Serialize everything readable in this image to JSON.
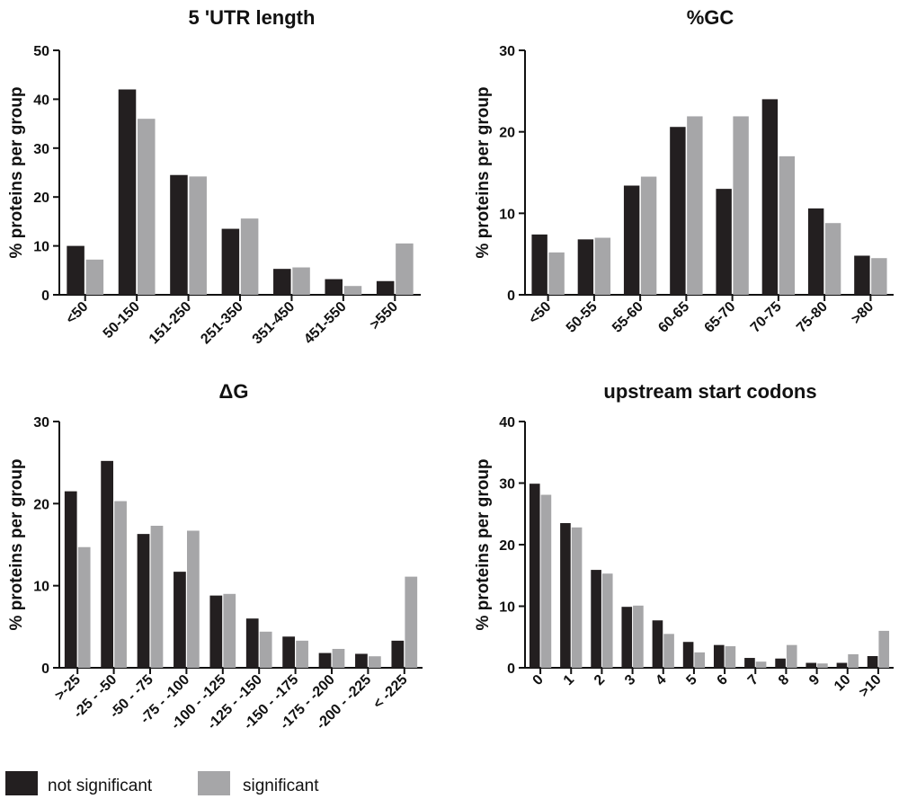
{
  "legend": {
    "items": [
      {
        "label": "not significant",
        "color": "#231f20"
      },
      {
        "label": "significant",
        "color": "#a6a6a8"
      }
    ]
  },
  "chart_data": [
    {
      "type": "bar",
      "title": "5 'UTR length",
      "ylabel": "% proteins per group",
      "xlabel": "",
      "ylim": [
        0,
        50
      ],
      "yticks": [
        "0",
        "10",
        "20",
        "30",
        "40",
        "50"
      ],
      "categories": [
        "<50",
        "50-150",
        "151-250",
        "251-350",
        "351-450",
        "451-550",
        ">550"
      ],
      "series": [
        {
          "name": "not significant",
          "values": [
            10,
            42,
            24.5,
            13.5,
            5.3,
            3.2,
            2.8
          ]
        },
        {
          "name": "significant",
          "values": [
            7.2,
            36,
            24.2,
            15.6,
            5.6,
            1.8,
            10.5
          ]
        }
      ]
    },
    {
      "type": "bar",
      "title": "%GC",
      "ylabel": "% proteins per group",
      "xlabel": "",
      "ylim": [
        0,
        30
      ],
      "yticks": [
        "0",
        "10",
        "20",
        "30"
      ],
      "categories": [
        "<50",
        "50-55",
        "55-60",
        "60-65",
        "65-70",
        "70-75",
        "75-80",
        ">80"
      ],
      "series": [
        {
          "name": "not significant",
          "values": [
            7.4,
            6.8,
            13.4,
            20.6,
            13,
            24,
            10.6,
            4.8
          ]
        },
        {
          "name": "significant",
          "values": [
            5.2,
            7,
            14.5,
            21.9,
            21.9,
            17,
            8.8,
            4.5
          ]
        }
      ]
    },
    {
      "type": "bar",
      "title": "ΔG",
      "ylabel": "% proteins per group",
      "xlabel": "",
      "ylim": [
        0,
        30
      ],
      "yticks": [
        "0",
        "10",
        "20",
        "30"
      ],
      "categories": [
        ">-25",
        "-25 - -50",
        "-50 - -75",
        "-75 - -100",
        "-100 - -125",
        "-125 - -150",
        "-150 - -175",
        "-175 - -200",
        "-200 - -225",
        "< -225"
      ],
      "series": [
        {
          "name": "not significant",
          "values": [
            21.5,
            25.2,
            16.3,
            11.7,
            8.8,
            6,
            3.8,
            1.8,
            1.7,
            3.3
          ]
        },
        {
          "name": "significant",
          "values": [
            14.7,
            20.3,
            17.3,
            16.7,
            9,
            4.4,
            3.3,
            2.3,
            1.4,
            11.1
          ]
        }
      ]
    },
    {
      "type": "bar",
      "title": "upstream start codons",
      "ylabel": "% proteins per group",
      "xlabel": "",
      "ylim": [
        0,
        40
      ],
      "yticks": [
        "0",
        "10",
        "20",
        "30",
        "40"
      ],
      "categories": [
        "0",
        "1",
        "2",
        "3",
        "4",
        "5",
        "6",
        "7",
        "8",
        "9",
        "10",
        ">10"
      ],
      "series": [
        {
          "name": "not significant",
          "values": [
            29.9,
            23.5,
            15.9,
            9.9,
            7.7,
            4.2,
            3.7,
            1.6,
            1.5,
            0.8,
            0.8,
            1.9
          ]
        },
        {
          "name": "significant",
          "values": [
            28.1,
            22.8,
            15.3,
            10.1,
            5.5,
            2.5,
            3.5,
            1,
            3.7,
            0.7,
            2.2,
            6
          ]
        }
      ]
    }
  ]
}
